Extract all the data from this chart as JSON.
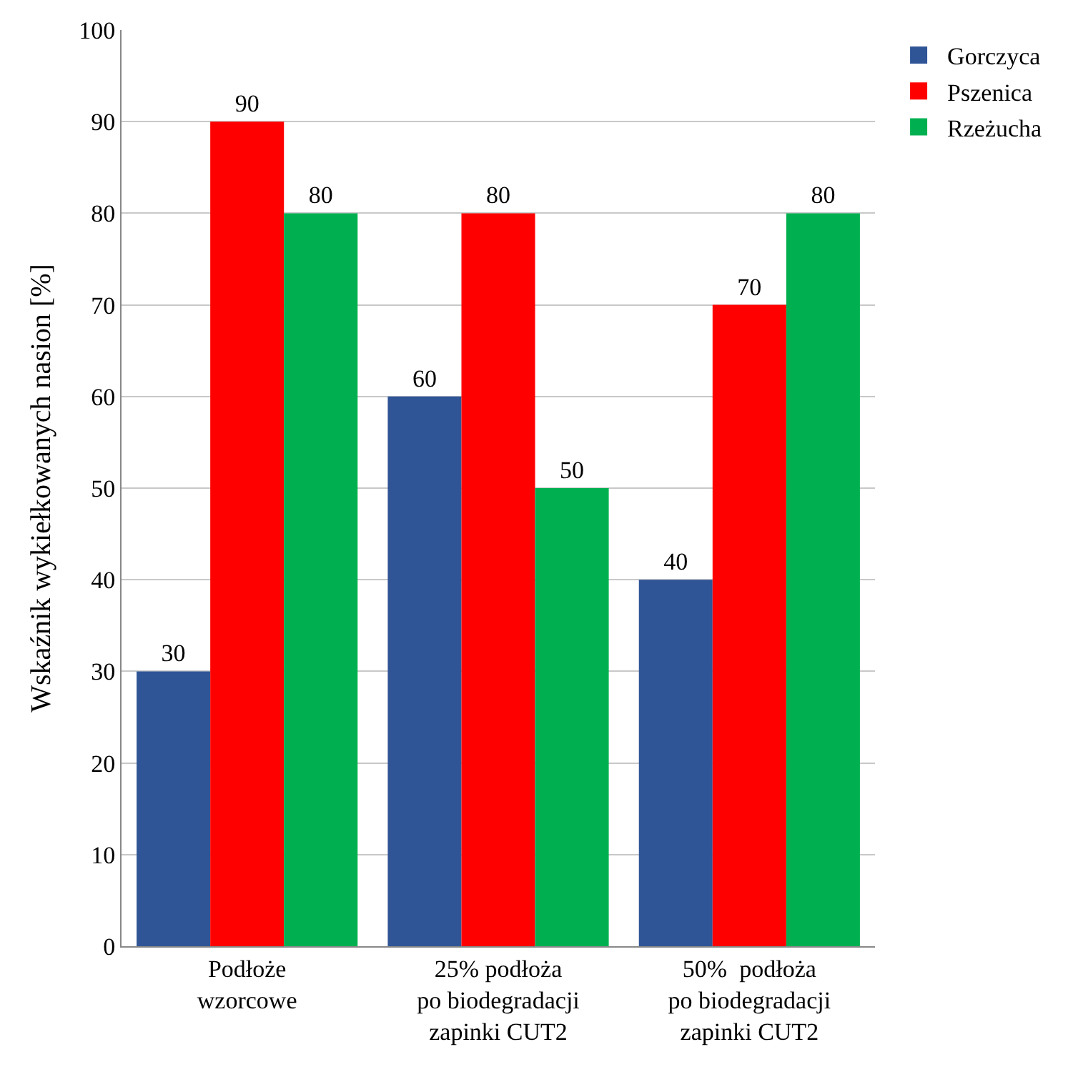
{
  "chart_data": {
    "type": "bar",
    "ylabel": "Wskaźnik wykiełkowanych nasion [%]",
    "categories": [
      "Podłoże\nwzorcowe",
      "25% podłoża\npo biodegradacji\nzapinki CUT2",
      "50%  podłoża\npo biodegradacji\nzapinki CUT2"
    ],
    "series": [
      {
        "name": "Gorczyca",
        "color": "#2f5597",
        "values": [
          30,
          60,
          40
        ]
      },
      {
        "name": "Pszenica",
        "color": "#ff0000",
        "values": [
          90,
          80,
          70
        ]
      },
      {
        "name": "Rzeżucha",
        "color": "#00b050",
        "values": [
          80,
          50,
          80
        ]
      }
    ],
    "ylim": [
      0,
      100
    ],
    "yticks": [
      0,
      10,
      20,
      30,
      40,
      50,
      60,
      70,
      80,
      90,
      100
    ],
    "grid": "y",
    "legend": "top right",
    "data_labels": true
  }
}
